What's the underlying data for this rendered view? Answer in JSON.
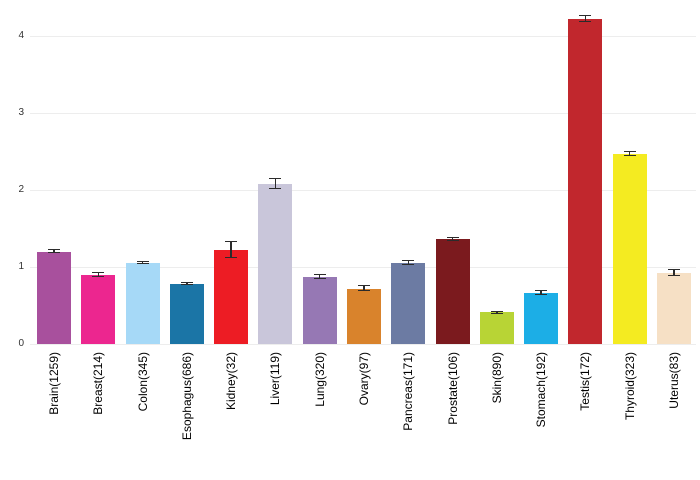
{
  "chart_data": {
    "type": "bar",
    "title": "",
    "xlabel": "",
    "ylabel": "",
    "ylim": [
      0,
      4.4
    ],
    "yticks": [
      0,
      1,
      2,
      3,
      4
    ],
    "grid": true,
    "legend": false,
    "error_bars": true,
    "categories": [
      "Brain(1259)",
      "Breast(214)",
      "Colon(345)",
      "Esophagus(686)",
      "Kidney(32)",
      "Liver(119)",
      "Lung(320)",
      "Ovary(97)",
      "Pancreas(171)",
      "Prostate(106)",
      "Skin(890)",
      "Stomach(192)",
      "Testis(172)",
      "Thyroid(323)",
      "Uterus(83)"
    ],
    "values": [
      1.2,
      0.9,
      1.05,
      0.78,
      1.22,
      2.08,
      0.87,
      0.72,
      1.05,
      1.36,
      0.41,
      0.66,
      4.22,
      2.47,
      0.92
    ],
    "errors": [
      0.03,
      0.04,
      0.03,
      0.03,
      0.12,
      0.08,
      0.04,
      0.04,
      0.04,
      0.03,
      0.02,
      0.04,
      0.05,
      0.04,
      0.05
    ],
    "colors": [
      "#a8509d",
      "#ec268f",
      "#a6d9f7",
      "#1b75a6",
      "#ed1c24",
      "#c9c6da",
      "#9678b4",
      "#d9832c",
      "#6c7ba3",
      "#7b1a1e",
      "#b8d435",
      "#1caee6",
      "#c1272d",
      "#f4eb21",
      "#f6e0c5"
    ],
    "error_bar_color": "#2b2b2b",
    "gridline_color": "#ededed",
    "background_color": "#ffffff"
  }
}
